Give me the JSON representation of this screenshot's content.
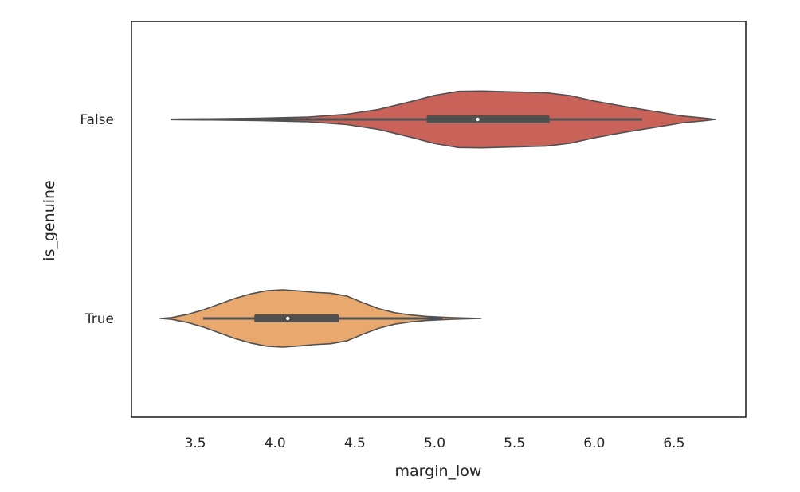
{
  "chart_data": {
    "type": "violin",
    "orientation": "horizontal",
    "title": "",
    "xlabel": "margin_low",
    "ylabel": "is_genuine",
    "xlim": [
      3.1,
      6.95
    ],
    "x_ticks": [
      "3.5",
      "4.0",
      "4.5",
      "5.0",
      "5.5",
      "6.0",
      "6.5"
    ],
    "categories": [
      "False",
      "True"
    ],
    "grid": false,
    "violins": [
      {
        "category": "False",
        "color": "#c9635a",
        "whisker": [
          3.55,
          6.3
        ],
        "q1": 4.95,
        "q3": 5.72,
        "median": 5.27,
        "density": [
          [
            3.35,
            0.01
          ],
          [
            3.6,
            0.02
          ],
          [
            3.9,
            0.04
          ],
          [
            4.2,
            0.08
          ],
          [
            4.45,
            0.18
          ],
          [
            4.65,
            0.35
          ],
          [
            4.85,
            0.62
          ],
          [
            5.0,
            0.84
          ],
          [
            5.15,
            0.98
          ],
          [
            5.3,
            0.99
          ],
          [
            5.5,
            0.96
          ],
          [
            5.7,
            0.93
          ],
          [
            5.85,
            0.83
          ],
          [
            6.0,
            0.64
          ],
          [
            6.2,
            0.44
          ],
          [
            6.4,
            0.26
          ],
          [
            6.55,
            0.12
          ],
          [
            6.7,
            0.04
          ],
          [
            6.76,
            0.0
          ]
        ]
      },
      {
        "category": "True",
        "color": "#e8a86e",
        "whisker": [
          3.55,
          5.05
        ],
        "q1": 3.87,
        "q3": 4.4,
        "median": 4.08,
        "density": [
          [
            3.28,
            0.0
          ],
          [
            3.35,
            0.03
          ],
          [
            3.45,
            0.14
          ],
          [
            3.55,
            0.3
          ],
          [
            3.65,
            0.5
          ],
          [
            3.75,
            0.7
          ],
          [
            3.85,
            0.86
          ],
          [
            3.95,
            0.97
          ],
          [
            4.05,
            1.0
          ],
          [
            4.15,
            0.96
          ],
          [
            4.25,
            0.91
          ],
          [
            4.35,
            0.88
          ],
          [
            4.45,
            0.78
          ],
          [
            4.55,
            0.55
          ],
          [
            4.65,
            0.34
          ],
          [
            4.75,
            0.2
          ],
          [
            4.85,
            0.12
          ],
          [
            4.95,
            0.07
          ],
          [
            5.1,
            0.03
          ],
          [
            5.29,
            0.0
          ]
        ]
      }
    ]
  }
}
